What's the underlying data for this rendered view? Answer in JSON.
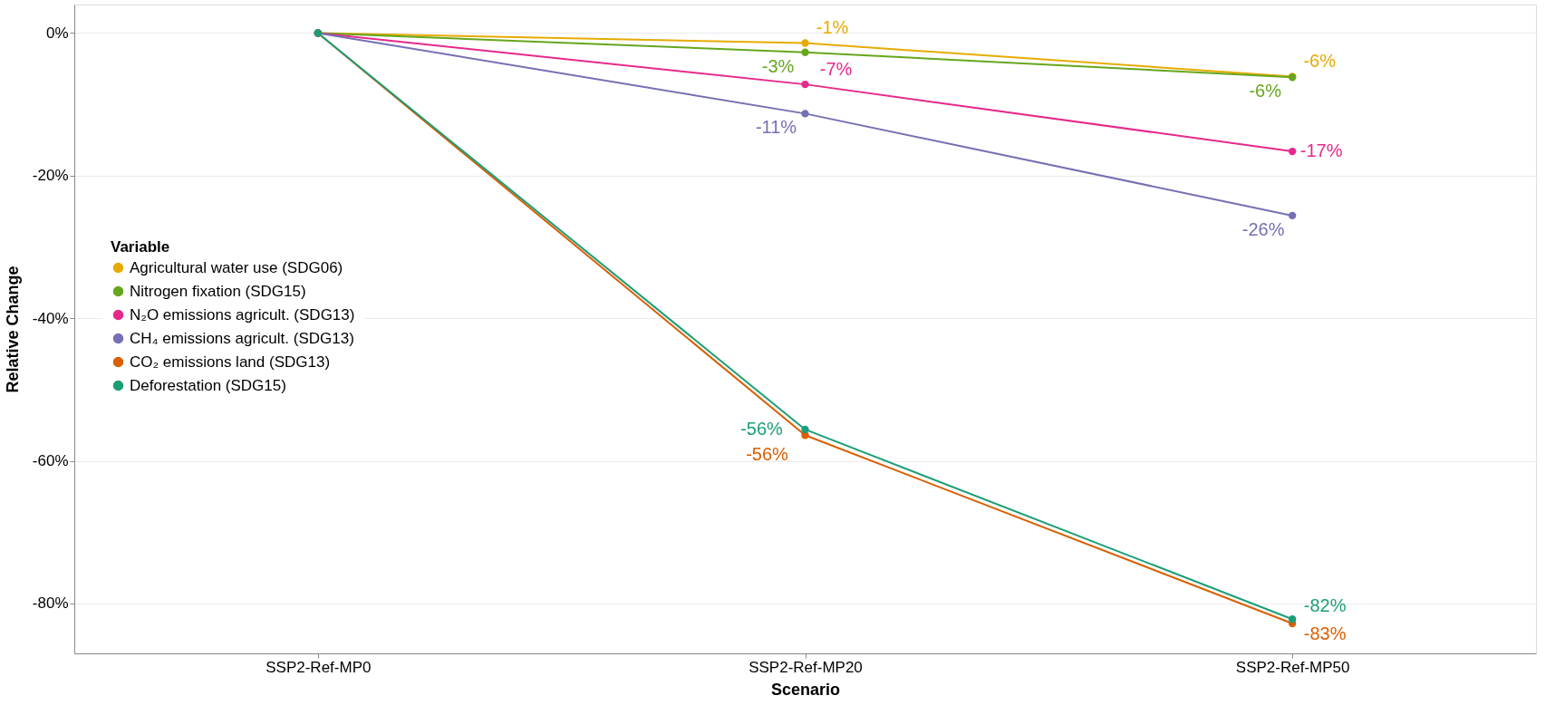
{
  "chart_data": {
    "type": "line",
    "xlabel": "Scenario",
    "ylabel": "Relative Change",
    "legend_title": "Variable",
    "categories": [
      "SSP2-Ref-MP0",
      "SSP2-Ref-MP20",
      "SSP2-Ref-MP50"
    ],
    "ylim": [
      -87,
      4
    ],
    "yticks": [
      {
        "value": 0,
        "label": "0%"
      },
      {
        "value": -20,
        "label": "-20%"
      },
      {
        "value": -40,
        "label": "-40%"
      },
      {
        "value": -60,
        "label": "-60%"
      },
      {
        "value": -80,
        "label": "-80%"
      }
    ],
    "grid": "y",
    "legend": "left",
    "marker": "circle",
    "line_style": "solid",
    "series": [
      {
        "name": "Agricultural water use (SDG06)",
        "color": "#e6ab02",
        "values": [
          0,
          -1.4,
          -6.1
        ],
        "value_labels": [
          null,
          "-1%",
          "-6%"
        ]
      },
      {
        "name": "Nitrogen fixation (SDG15)",
        "color": "#66a61e",
        "values": [
          0,
          -2.7,
          -6.2
        ],
        "value_labels": [
          null,
          "-3%",
          "-6%"
        ]
      },
      {
        "name": "N₂O emissions agricult. (SDG13)",
        "color": "#e7298a",
        "values": [
          0,
          -7.2,
          -16.6
        ],
        "value_labels": [
          null,
          "-7%",
          "-17%"
        ]
      },
      {
        "name": "CH₄ emissions agricult. (SDG13)",
        "color": "#7570b3",
        "values": [
          0,
          -11.3,
          -25.6
        ],
        "value_labels": [
          null,
          "-11%",
          "-26%"
        ]
      },
      {
        "name": "CO₂ emissions land (SDG13)",
        "color": "#d95f02",
        "values": [
          0,
          -56.4,
          -82.8
        ],
        "value_labels": [
          null,
          "-56%",
          "-83%"
        ]
      },
      {
        "name": "Deforestation (SDG15)",
        "color": "#1b9e77",
        "values": [
          0,
          -55.6,
          -82.2
        ],
        "value_labels": [
          null,
          "-56%",
          "-82%"
        ]
      }
    ]
  }
}
